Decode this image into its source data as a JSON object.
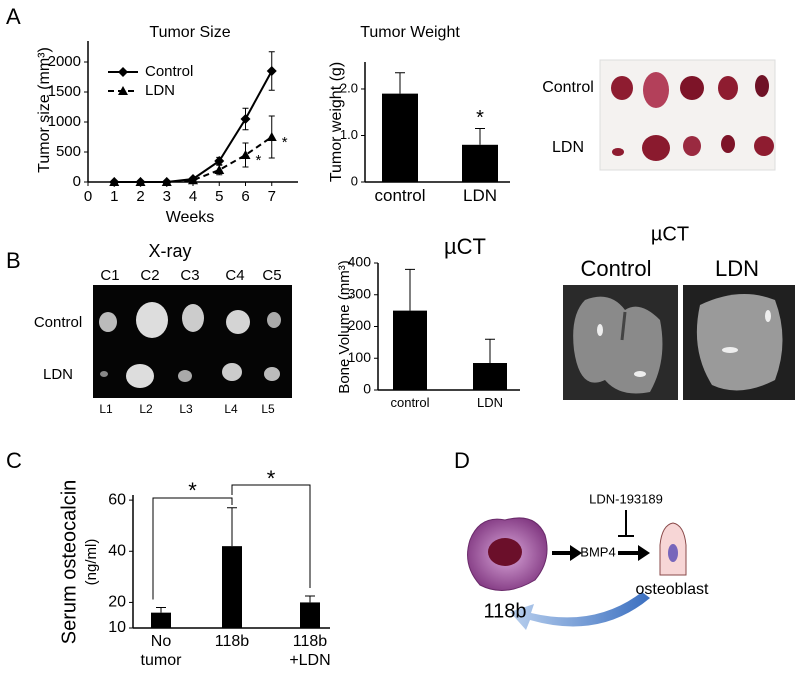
{
  "chart_data": [
    {
      "type": "line",
      "title": "Tumor Size",
      "xlabel": "Weeks",
      "ylabel": "Tumor size (mm³)",
      "x": [
        1,
        2,
        3,
        4,
        5,
        6,
        7
      ],
      "xlim": [
        0,
        8
      ],
      "xticks": [
        0,
        1,
        2,
        3,
        4,
        5,
        6,
        7
      ],
      "ylim": [
        0,
        2350
      ],
      "yticks": [
        0,
        500,
        1000,
        1500,
        2000
      ],
      "legend": "upper left",
      "series": [
        {
          "name": "Control",
          "color": "#000000",
          "marker": "diamond",
          "dash": "solid",
          "values": [
            0,
            0,
            0,
            50,
            350,
            1050,
            1850
          ],
          "errors": [
            0,
            0,
            0,
            20,
            60,
            180,
            320
          ]
        },
        {
          "name": "LDN",
          "color": "#000000",
          "marker": "triangle",
          "dash": "dashed",
          "values": [
            0,
            0,
            0,
            30,
            200,
            450,
            750
          ],
          "errors": [
            0,
            0,
            0,
            20,
            80,
            200,
            350
          ]
        }
      ],
      "annotations": [
        "*",
        "*"
      ]
    },
    {
      "type": "bar",
      "title": "Tumor Weight",
      "ylabel": "Tumor weight (g)",
      "categories": [
        "control",
        "LDN"
      ],
      "values": [
        1.9,
        0.8
      ],
      "errors": [
        0.45,
        0.35
      ],
      "color": "#000000",
      "ylim": [
        0,
        2.58
      ],
      "yticks": [
        0,
        {
          "value": 1,
          "label": "1.0"
        },
        {
          "value": 2,
          "label": "2.0"
        }
      ],
      "annotations": [
        "*"
      ]
    },
    {
      "type": "bar",
      "title": "µCT",
      "ylabel": "Bone Volume (mm³)",
      "categories": [
        "control",
        "LDN"
      ],
      "values": [
        250,
        85
      ],
      "errors": [
        130,
        75
      ],
      "color": "#000000",
      "ylim": [
        0,
        400
      ],
      "yticks": [
        0,
        100,
        200,
        300,
        400
      ]
    },
    {
      "type": "bar",
      "ylabel": "Serum osteocalcin",
      "ylabel_units": "(ng/ml)",
      "categories": [
        "No tumor",
        "118b",
        "118b +LDN"
      ],
      "values": [
        16,
        42,
        20
      ],
      "errors": [
        2,
        15,
        2.5
      ],
      "color": "#000000",
      "ylim": [
        10,
        62
      ],
      "yticks": [
        10,
        20,
        40,
        60
      ],
      "annotations": [
        "*",
        "*"
      ]
    }
  ],
  "panels": [
    "A",
    "B",
    "C",
    "D"
  ],
  "photo": {
    "rows": [
      "Control",
      "LDN"
    ]
  },
  "xray": {
    "title": "X-ray",
    "columns": [
      "C1",
      "C2",
      "C3",
      "C4",
      "C5"
    ],
    "rows": [
      "Control",
      "LDN"
    ],
    "bottom": [
      "L1",
      "L2",
      "L3",
      "L4",
      "L5"
    ]
  },
  "microct": {
    "title": "µCT",
    "labels": [
      "Control",
      "LDN"
    ]
  },
  "diagram": {
    "cell": "118b",
    "factor": "BMP4",
    "inhibitor": "LDN-193189",
    "target": "osteoblast"
  }
}
